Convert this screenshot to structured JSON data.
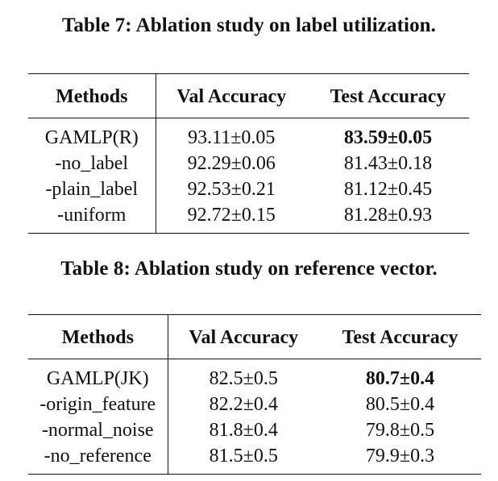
{
  "table7": {
    "caption": "Table 7: Ablation study on label utilization.",
    "headers": [
      "Methods",
      "Val Accuracy",
      "Test Accuracy"
    ],
    "rows": [
      {
        "method": "GAMLP(R)",
        "val": "93.11±0.05",
        "test": "83.59±0.05"
      },
      {
        "method": "-no_label",
        "val": "92.29±0.06",
        "test": "81.43±0.18"
      },
      {
        "method": "-plain_label",
        "val": "92.53±0.21",
        "test": "81.12±0.45"
      },
      {
        "method": "-uniform",
        "val": "92.72±0.15",
        "test": "81.28±0.93"
      }
    ]
  },
  "table8": {
    "caption": "Table 8: Ablation study on reference vector.",
    "headers": [
      "Methods",
      "Val Accuracy",
      "Test Accuracy"
    ],
    "rows": [
      {
        "method": "GAMLP(JK)",
        "val": "82.5±0.5",
        "test": "80.7±0.4"
      },
      {
        "method": "-origin_feature",
        "val": "82.2±0.4",
        "test": "80.5±0.4"
      },
      {
        "method": "-normal_noise",
        "val": "81.8±0.4",
        "test": "79.8±0.5"
      },
      {
        "method": "-no_reference",
        "val": "81.5±0.5",
        "test": "79.9±0.3"
      }
    ]
  }
}
